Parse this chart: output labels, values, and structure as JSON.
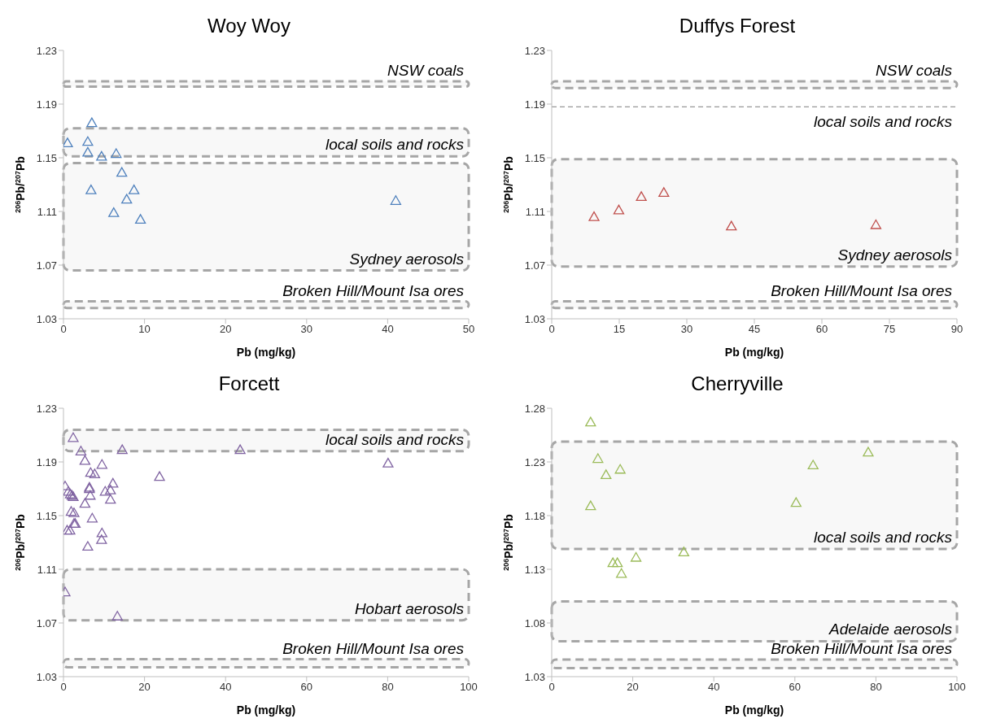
{
  "chart_data": [
    {
      "type": "scatter",
      "title": "Woy Woy",
      "xlabel": "Pb (mg/kg)",
      "ylabel": "$^{206}$Pb/$^{207}$Pb",
      "marker": "triangle",
      "xlim": [
        0,
        50
      ],
      "xticks": [
        0,
        10,
        20,
        30,
        40,
        50
      ],
      "ylim": [
        1.03,
        1.23
      ],
      "yticks": [
        1.03,
        1.07,
        1.11,
        1.15,
        1.19,
        1.23
      ],
      "bands": [
        {
          "axis": "y",
          "from": 1.203,
          "to": 1.207,
          "label": "NSW coals",
          "color": "#a6a6a6"
        },
        {
          "axis": "y",
          "from": 1.151,
          "to": 1.172,
          "label": "local soils and rocks",
          "color": "#a6a6a6"
        },
        {
          "axis": "y",
          "from": 1.066,
          "to": 1.146,
          "label": "Sydney aerosols",
          "color": "#a6a6a6"
        },
        {
          "axis": "y",
          "from": 1.038,
          "to": 1.043,
          "label": "Broken Hill/Mount Isa ores",
          "color": "#a6a6a6"
        }
      ],
      "series": [
        {
          "color": "#4f81bd",
          "x": [
            0.5,
            3.5,
            3.0,
            3.0,
            4.7,
            6.5,
            7.2,
            3.4,
            8.7,
            7.8,
            6.2,
            9.5,
            41.0
          ],
          "values": [
            1.161,
            1.176,
            1.162,
            1.154,
            1.151,
            1.153,
            1.139,
            1.126,
            1.126,
            1.119,
            1.109,
            1.104,
            1.118
          ]
        }
      ]
    },
    {
      "type": "scatter",
      "title": "Duffys Forest",
      "xlabel": "Pb (mg/kg)",
      "ylabel": "$^{206}$Pb/$^{207}$Pb",
      "marker": "triangle",
      "xlim": [
        0,
        90
      ],
      "xticks": [
        0,
        15,
        30,
        45,
        60,
        75,
        90
      ],
      "ylim": [
        1.03,
        1.23
      ],
      "yticks": [
        1.03,
        1.07,
        1.11,
        1.15,
        1.19,
        1.23
      ],
      "bands": [
        {
          "axis": "y",
          "from": 1.202,
          "to": 1.207,
          "label": "NSW coals",
          "color": "#a6a6a6"
        },
        {
          "axis": "y",
          "from": 1.069,
          "to": 1.149,
          "label": "Sydney aerosols",
          "color": "#a6a6a6"
        },
        {
          "axis": "y",
          "from": 1.038,
          "to": 1.043,
          "label": "Broken Hill/Mount Isa ores",
          "color": "#a6a6a6"
        }
      ],
      "ref_lines": [
        {
          "axis": "y",
          "value": 1.188,
          "label": "local soils and rocks",
          "color": "#7f7f7f",
          "line_style": "dashed"
        }
      ],
      "series": [
        {
          "color": "#c0504d",
          "x": [
            9.4,
            14.9,
            19.9,
            24.9,
            39.9,
            72.0
          ],
          "values": [
            1.106,
            1.111,
            1.121,
            1.124,
            1.099,
            1.1
          ]
        }
      ]
    },
    {
      "type": "scatter",
      "title": "Forcett",
      "xlabel": "Pb (mg/kg)",
      "ylabel": "$^{206}$Pb/$^{207}$Pb",
      "marker": "triangle",
      "xlim": [
        0,
        100
      ],
      "xticks": [
        0,
        20,
        40,
        60,
        80,
        100
      ],
      "ylim": [
        1.03,
        1.23
      ],
      "yticks": [
        1.03,
        1.07,
        1.11,
        1.15,
        1.19,
        1.23
      ],
      "bands": [
        {
          "axis": "y",
          "from": 1.198,
          "to": 1.214,
          "label": "local soils and rocks",
          "color": "#a6a6a6"
        },
        {
          "axis": "y",
          "from": 1.072,
          "to": 1.11,
          "label": "Hobart aerosols",
          "color": "#a6a6a6"
        },
        {
          "axis": "y",
          "from": 1.037,
          "to": 1.043,
          "label": "Broken Hill/Mount Isa ores",
          "color": "#a6a6a6"
        }
      ],
      "series": [
        {
          "color": "#8064a2",
          "x": [
            2.4,
            4.3,
            14.5,
            43.6,
            80.1,
            5.3,
            9.5,
            6.7,
            7.7,
            23.7,
            0.4,
            12.2,
            6.4,
            6.4,
            1.2,
            1.7,
            2.1,
            2.4,
            10.3,
            11.6,
            6.6,
            11.6,
            5.3,
            1.9,
            2.6,
            7.1,
            2.6,
            2.9,
            0.9,
            1.6,
            9.5,
            9.4,
            6.0,
            0.4,
            13.3
          ],
          "values": [
            1.208,
            1.198,
            1.199,
            1.199,
            1.189,
            1.191,
            1.188,
            1.182,
            1.181,
            1.179,
            1.172,
            1.174,
            1.171,
            1.17,
            1.168,
            1.166,
            1.165,
            1.164,
            1.168,
            1.169,
            1.165,
            1.162,
            1.159,
            1.153,
            1.152,
            1.148,
            1.144,
            1.144,
            1.139,
            1.139,
            1.137,
            1.132,
            1.127,
            1.093,
            1.075
          ]
        }
      ]
    },
    {
      "type": "scatter",
      "title": "Cherryville",
      "xlabel": "Pb (mg/kg)",
      "ylabel": "$^{206}$Pb/$^{207}$Pb",
      "marker": "triangle",
      "xlim": [
        0,
        100
      ],
      "xticks": [
        0,
        20,
        40,
        60,
        80,
        100
      ],
      "ylim": [
        1.03,
        1.28
      ],
      "yticks": [
        1.03,
        1.08,
        1.13,
        1.18,
        1.23,
        1.28
      ],
      "bands": [
        {
          "axis": "y",
          "from": 1.149,
          "to": 1.249,
          "label": "local soils and rocks",
          "color": "#a6a6a6"
        },
        {
          "axis": "y",
          "from": 1.063,
          "to": 1.1,
          "label": "Adelaide aerosols",
          "color": "#a6a6a6"
        },
        {
          "axis": "y",
          "from": 1.038,
          "to": 1.046,
          "label": "Broken Hill/Mount Isa ores",
          "color": "#a6a6a6"
        }
      ],
      "series": [
        {
          "color": "#9bbb59",
          "x": [
            9.6,
            11.4,
            13.4,
            16.9,
            9.6,
            64.5,
            78.1,
            60.3,
            32.6,
            20.8,
            15.1,
            16.2,
            17.2
          ],
          "values": [
            1.267,
            1.233,
            1.218,
            1.223,
            1.189,
            1.227,
            1.239,
            1.192,
            1.146,
            1.141,
            1.136,
            1.136,
            1.126
          ]
        }
      ]
    }
  ]
}
